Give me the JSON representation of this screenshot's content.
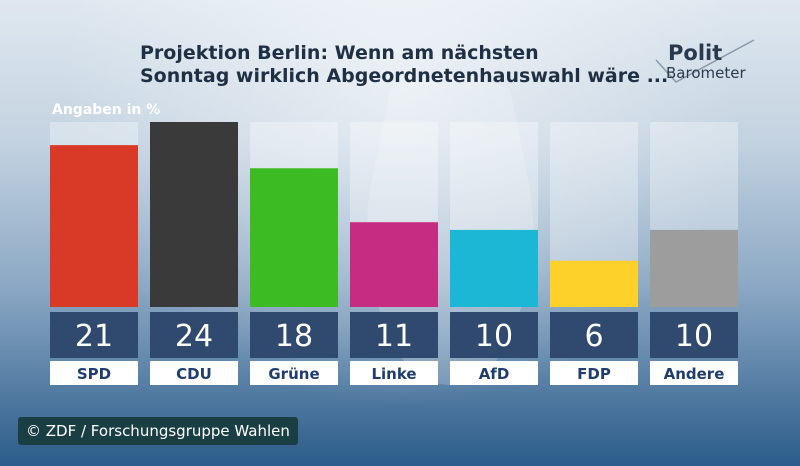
{
  "title_lines": [
    "Projektion Berlin: Wenn am nächsten",
    "Sonntag wirklich Abgeordnetenhauswahl wäre ..."
  ],
  "logo": {
    "word1": "Polit",
    "word2": "Barometer"
  },
  "unit_label": "Angaben in %",
  "credit": "© ZDF / Forschungsgruppe Wahlen",
  "colors": {
    "SPD": "#d93a27",
    "CDU": "#3a3a3a",
    "Grüne": "#3dbb23",
    "Linke": "#c62d82",
    "AfD": "#1db7d6",
    "FDP": "#fdd02a",
    "Andere": "#9d9d9d",
    "value_box": "#2f4a6e",
    "label_box": "#ffffff",
    "label_text": "#1f3d6e"
  },
  "chart_data": {
    "type": "bar",
    "title": "Projektion Berlin: Wenn am nächsten Sonntag wirklich Abgeordnetenhauswahl wäre ...",
    "ylabel": "Angaben in %",
    "categories": [
      "SPD",
      "CDU",
      "Grüne",
      "Linke",
      "AfD",
      "FDP",
      "Andere"
    ],
    "values": [
      21,
      24,
      18,
      11,
      10,
      6,
      10
    ],
    "ylim": [
      0,
      24
    ],
    "grid": false
  }
}
